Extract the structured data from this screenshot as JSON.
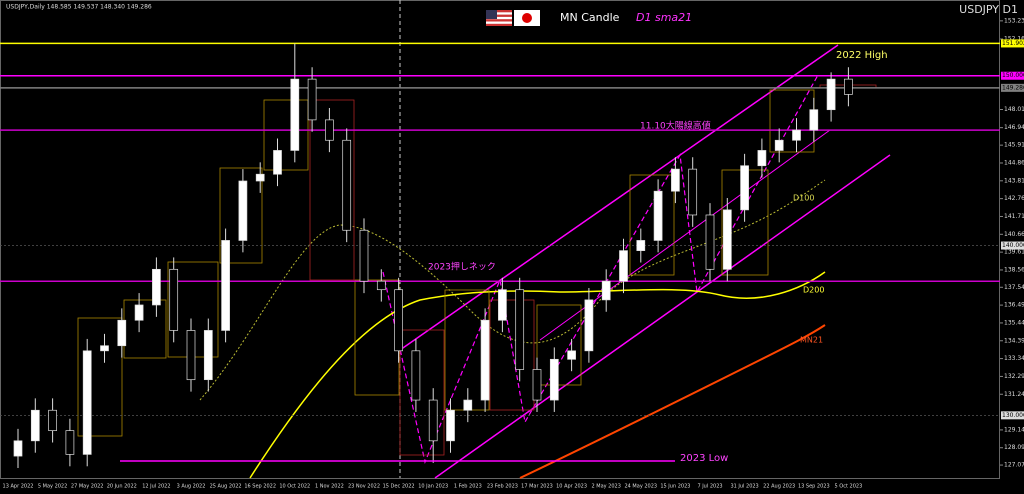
{
  "chart_data": {
    "type": "candlestick",
    "title": "USDJPY D1",
    "info": "USDJPY,Daily  148.585 149.537 148.340 149.286",
    "subtitle": "MN Candle",
    "indicator": "D1 sma21",
    "annotations": {
      "d100": "D100",
      "d200": "D200",
      "mn21": "MN21",
      "high2022": "2022 High",
      "neck": "11.10大陽線高値",
      "neck2023": "2023押しネック",
      "low2023": "2023 Low"
    },
    "categories": [
      "13 Apr 2022",
      null,
      "5 May 2022",
      null,
      "27 May 2022",
      null,
      "20 Jun 2022",
      null,
      "12 Jul 2022",
      null,
      "3 Aug 2022",
      null,
      "25 Aug 2022",
      null,
      "16 Sep 2022",
      null,
      "10 Oct 2022",
      null,
      "1 Nov 2022",
      null,
      "23 Nov 2022",
      null,
      "15 Dec 2022",
      null,
      "10 Jan 2023",
      null,
      "1 Feb 2023",
      null,
      "23 Feb 2023",
      null,
      "17 Mar 2023",
      null,
      "10 Apr 2023",
      null,
      "2 May 2023",
      null,
      "24 May 2023",
      null,
      "15 Jun 2023",
      null,
      "7 Jul 2023",
      null,
      "31 Jul 2023",
      null,
      "22 Aug 2023",
      null,
      "13 Sep 2023",
      null,
      "5 Oct 2023"
    ],
    "open": [
      127.6,
      128.5,
      130.3,
      129.1,
      127.7,
      133.8,
      134.1,
      135.6,
      136.5,
      138.6,
      135.0,
      132.1,
      135.0,
      140.3,
      143.8,
      144.2,
      145.6,
      149.8,
      147.4,
      146.2,
      140.9,
      137.9,
      137.4,
      133.8,
      130.9,
      128.5,
      130.3,
      130.9,
      135.6,
      137.4,
      132.7,
      130.9,
      133.3,
      133.8,
      136.8,
      137.9,
      139.7,
      140.3,
      143.2,
      144.5,
      141.8,
      138.6,
      142.1,
      144.7,
      145.6,
      146.2,
      146.8,
      148.0,
      149.8
    ],
    "high": [
      129.2,
      131.0,
      131.0,
      129.8,
      134.5,
      134.8,
      136.3,
      137.2,
      139.3,
      139.3,
      135.7,
      135.7,
      141.0,
      144.5,
      144.9,
      146.3,
      151.9,
      150.5,
      148.1,
      146.9,
      141.6,
      138.6,
      138.1,
      134.5,
      131.6,
      131.0,
      131.6,
      136.3,
      138.1,
      138.1,
      133.4,
      134.0,
      134.5,
      137.5,
      138.6,
      140.4,
      141.0,
      143.9,
      145.2,
      145.2,
      142.5,
      142.8,
      145.4,
      146.3,
      146.9,
      147.5,
      148.7,
      150.2,
      150.5
    ],
    "low": [
      126.9,
      127.8,
      128.4,
      127.0,
      127.0,
      133.1,
      133.4,
      134.9,
      135.8,
      134.3,
      131.4,
      131.4,
      134.3,
      139.6,
      143.1,
      143.5,
      144.9,
      146.7,
      145.5,
      140.2,
      137.2,
      136.7,
      133.1,
      130.2,
      127.2,
      127.8,
      129.6,
      130.2,
      134.9,
      132.0,
      130.2,
      130.2,
      132.6,
      133.1,
      136.1,
      137.2,
      139.0,
      139.6,
      142.5,
      141.1,
      137.9,
      137.9,
      141.4,
      144.0,
      144.9,
      145.5,
      146.1,
      147.3,
      148.2
    ],
    "close": [
      128.5,
      130.3,
      129.1,
      127.7,
      133.8,
      134.1,
      135.6,
      136.5,
      138.6,
      135.0,
      132.1,
      135.0,
      140.3,
      143.8,
      144.2,
      145.6,
      149.8,
      147.4,
      146.2,
      140.9,
      137.9,
      137.4,
      133.8,
      130.9,
      128.5,
      130.3,
      130.9,
      135.6,
      137.4,
      132.7,
      130.9,
      133.3,
      133.8,
      136.8,
      137.9,
      139.7,
      140.3,
      143.2,
      144.5,
      141.8,
      138.6,
      142.1,
      144.7,
      145.6,
      146.2,
      146.8,
      148.0,
      149.8,
      148.9
    ],
    "up_color": "#ffffff",
    "down_color": "#000000",
    "ylim": [
      126.31,
      154.46
    ],
    "yticks": [
      127.072,
      128.092,
      129.142,
      131.242,
      132.292,
      133.342,
      134.392,
      135.442,
      136.492,
      137.542,
      138.562,
      139.612,
      140.662,
      141.712,
      142.762,
      143.812,
      144.862,
      145.912,
      146.942,
      148.012,
      152.162,
      153.232
    ],
    "levels": [
      {
        "value": 151.902,
        "label": "151.902",
        "color": "#ffff00"
      },
      {
        "value": 150.0,
        "label": "150.000",
        "color": "#ff00ff"
      },
      {
        "value": 149.286,
        "label": "149.286",
        "color": "#808080"
      },
      {
        "value": 146.8,
        "color": "#cc00cc"
      },
      {
        "value": 140.0,
        "label": "140.000",
        "color": "#555555"
      },
      {
        "value": 137.9,
        "color": "#cc00cc"
      },
      {
        "value": 130.0,
        "label": "130.000",
        "color": "#555555"
      }
    ]
  }
}
